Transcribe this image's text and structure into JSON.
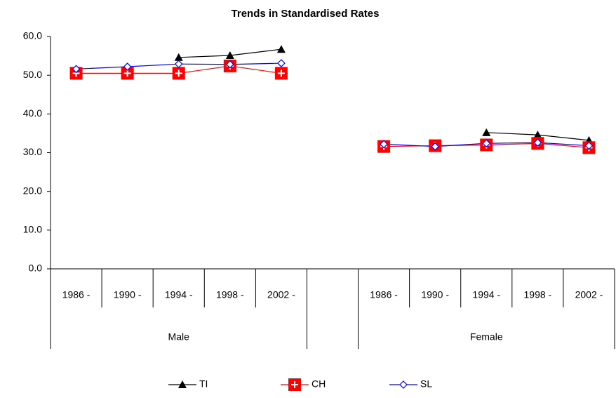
{
  "chart_data": {
    "type": "line",
    "title": "Trends in Standardised Rates",
    "categories": [
      "1986 -",
      "1990 -",
      "1994 -",
      "1998 -",
      "2002 -",
      null,
      "1986 -",
      "1990 -",
      "1994 -",
      "1998 -",
      "2002 -"
    ],
    "groups": [
      "Male",
      "Female"
    ],
    "series": [
      {
        "name": "TI",
        "color": "#000000",
        "marker": "triangle",
        "values": [
          null,
          null,
          54.6,
          55.1,
          56.7,
          null,
          null,
          null,
          35.2,
          34.6,
          33.2
        ]
      },
      {
        "name": "CH",
        "color": "#ff0000",
        "marker": "square",
        "values": [
          50.5,
          50.5,
          50.5,
          52.4,
          50.5,
          null,
          31.6,
          31.8,
          32.0,
          32.4,
          31.3
        ]
      },
      {
        "name": "SL",
        "color": "#0000ff",
        "marker": "diamond",
        "values": [
          51.6,
          52.2,
          52.9,
          52.8,
          53.1,
          null,
          32.2,
          31.6,
          32.4,
          32.6,
          31.8
        ]
      }
    ],
    "ylim": [
      0,
      60
    ],
    "yticks": [
      {
        "value": 0,
        "label": "0.0"
      },
      {
        "value": 10,
        "label": "10.0"
      },
      {
        "value": 20,
        "label": "20.0"
      },
      {
        "value": 30,
        "label": "30.0"
      },
      {
        "value": 40,
        "label": "40.0"
      },
      {
        "value": 50,
        "label": "50.0"
      },
      {
        "value": 60,
        "label": "60.0"
      }
    ],
    "legend": "bottom"
  }
}
